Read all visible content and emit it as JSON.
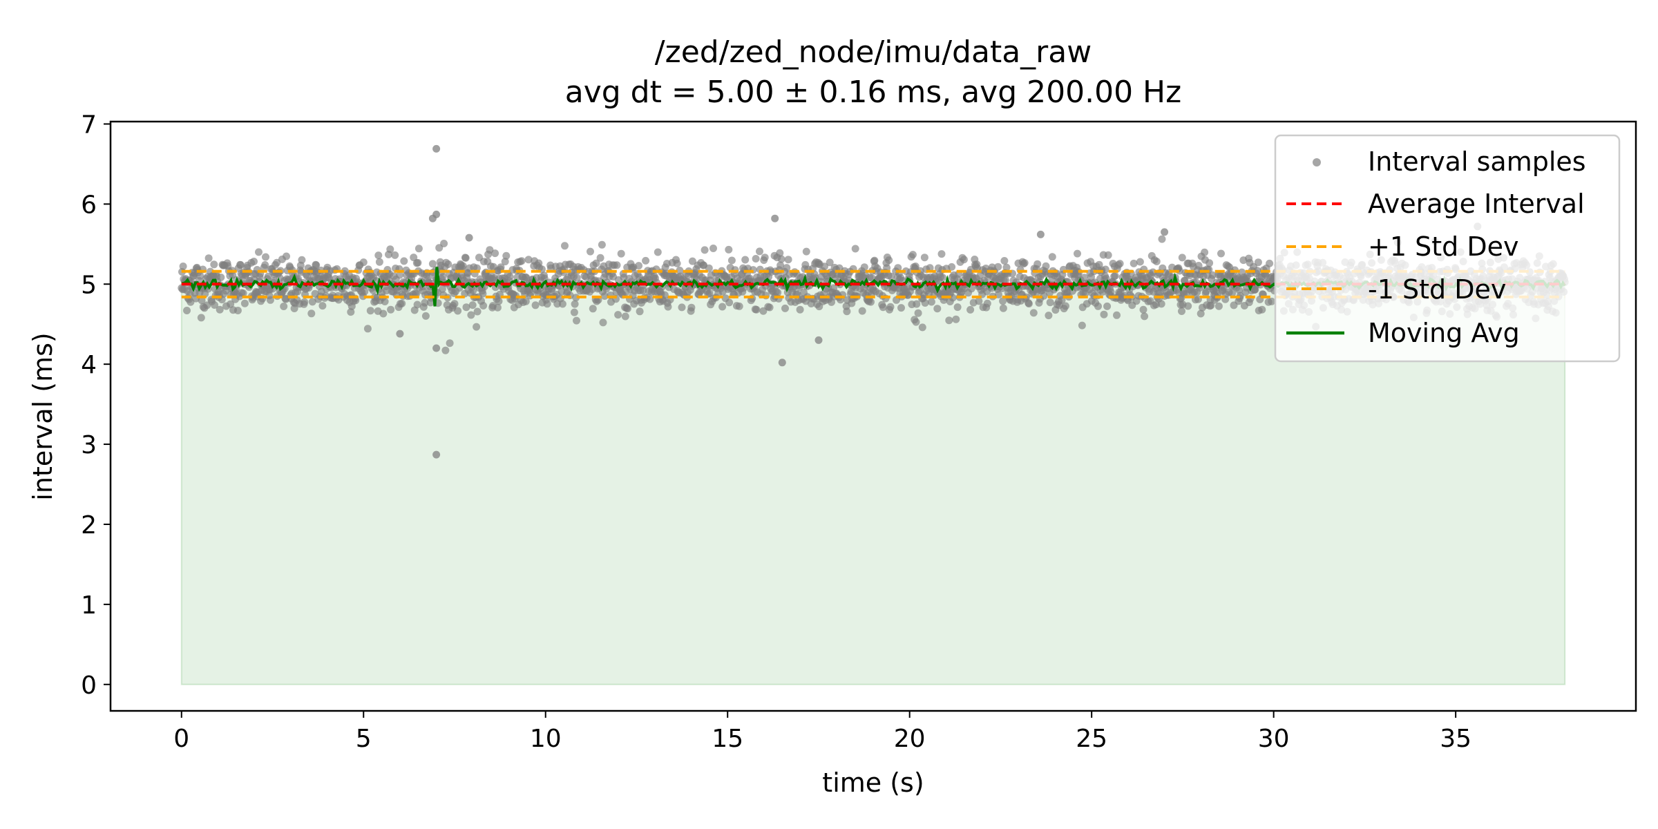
{
  "chart_data": {
    "type": "scatter",
    "title": "/zed/zed_node/imu/data_raw",
    "subtitle": "avg dt = 5.00 ± 0.16 ms, avg 200.00 Hz",
    "xlabel": "time (s)",
    "ylabel": "interval (ms)",
    "xlim": [
      -1.95,
      39.95
    ],
    "ylim": [
      -0.33,
      7.03
    ],
    "xticks": [
      0,
      5,
      10,
      15,
      20,
      25,
      30,
      35
    ],
    "yticks": [
      0,
      1,
      2,
      3,
      4,
      5,
      6,
      7
    ],
    "grid": false,
    "legend_position": "top-right",
    "time_range": [
      0,
      38
    ],
    "average_interval": 5.0,
    "std_dev": 0.16,
    "avg_rate_hz": 200.0,
    "series": [
      {
        "name": "Interval samples",
        "kind": "scatter",
        "color": "#808080",
        "mean": 5.0,
        "std": 0.16,
        "notable_points": [
          {
            "x": 7.0,
            "y": 6.69
          },
          {
            "x": 7.0,
            "y": 2.87
          },
          {
            "x": 16.5,
            "y": 4.02
          },
          {
            "x": 7.0,
            "y": 5.87
          },
          {
            "x": 6.9,
            "y": 5.82
          },
          {
            "x": 16.3,
            "y": 5.82
          },
          {
            "x": 7.0,
            "y": 4.2
          },
          {
            "x": 6.0,
            "y": 4.38
          },
          {
            "x": 17.5,
            "y": 4.3
          },
          {
            "x": 27.0,
            "y": 5.65
          },
          {
            "x": 23.6,
            "y": 5.62
          },
          {
            "x": 7.9,
            "y": 5.58
          },
          {
            "x": 35.6,
            "y": 5.72
          }
        ]
      },
      {
        "name": "Average Interval",
        "kind": "hline",
        "y": 5.0,
        "color": "#ff0000",
        "dash": true
      },
      {
        "name": "+1 Std Dev",
        "kind": "hline",
        "y": 5.16,
        "color": "#ffa500",
        "dash": true
      },
      {
        "name": "-1 Std Dev",
        "kind": "hline",
        "y": 4.84,
        "color": "#ffa500",
        "dash": true
      },
      {
        "name": "Moving Avg",
        "kind": "line",
        "y": 5.0,
        "color": "#008000",
        "spike_at": 7.0
      }
    ],
    "fill": {
      "color": "#008000",
      "opacity": 0.1,
      "from": 0,
      "to": 5.0
    }
  }
}
